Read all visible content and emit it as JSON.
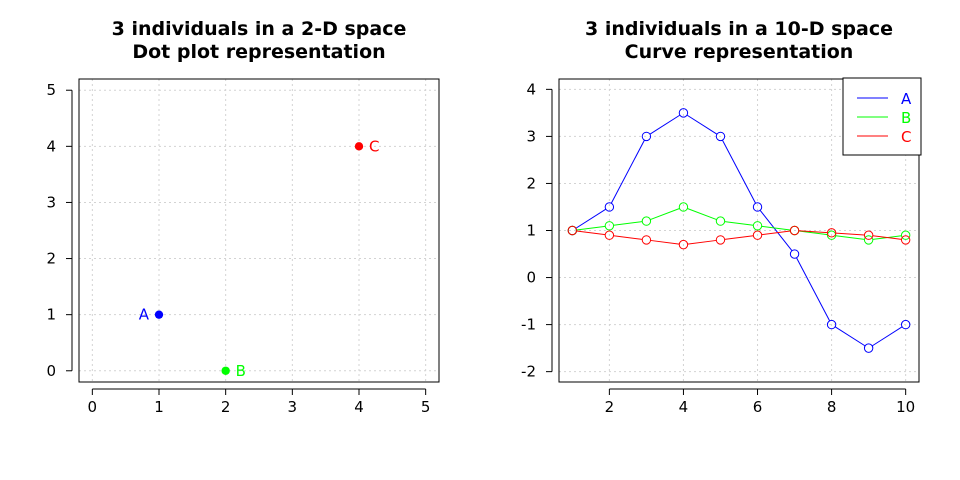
{
  "chart_data": [
    {
      "type": "scatter",
      "title": "3 individuals in a 2-D space",
      "subtitle": "Dot plot representation",
      "xlim": [
        -0.2,
        5.2
      ],
      "ylim": [
        -0.2,
        5.2
      ],
      "xticks": [
        0,
        1,
        2,
        3,
        4,
        5
      ],
      "yticks": [
        0,
        1,
        2,
        3,
        4,
        5
      ],
      "grid": true,
      "points": [
        {
          "label": "A",
          "x": 1,
          "y": 1,
          "color": "#0000ff"
        },
        {
          "label": "B",
          "x": 2,
          "y": 0,
          "color": "#00ff00"
        },
        {
          "label": "C",
          "x": 4,
          "y": 4,
          "color": "#ff0000"
        }
      ]
    },
    {
      "type": "line",
      "title": "3 individuals in a 10-D space",
      "subtitle": "Curve representation",
      "x": [
        1,
        2,
        3,
        4,
        5,
        6,
        7,
        8,
        9,
        10
      ],
      "xlim": [
        0.64,
        10.36
      ],
      "ylim": [
        -2.22,
        4.22
      ],
      "xticks": [
        2,
        4,
        6,
        8,
        10
      ],
      "yticks": [
        -2,
        -1,
        0,
        1,
        2,
        3,
        4
      ],
      "grid": true,
      "legend_position": "top-right",
      "series": [
        {
          "name": "A",
          "color": "#0000ff",
          "values": [
            1,
            1.5,
            3,
            3.5,
            3,
            1.5,
            0.5,
            -1,
            -1.5,
            -1
          ]
        },
        {
          "name": "B",
          "color": "#00ff00",
          "values": [
            1,
            1.1,
            1.2,
            1.5,
            1.2,
            1.1,
            1,
            0.9,
            0.8,
            0.9
          ]
        },
        {
          "name": "C",
          "color": "#ff0000",
          "values": [
            1,
            0.9,
            0.8,
            0.7,
            0.8,
            0.9,
            1,
            0.95,
            0.9,
            0.8
          ]
        }
      ]
    }
  ]
}
